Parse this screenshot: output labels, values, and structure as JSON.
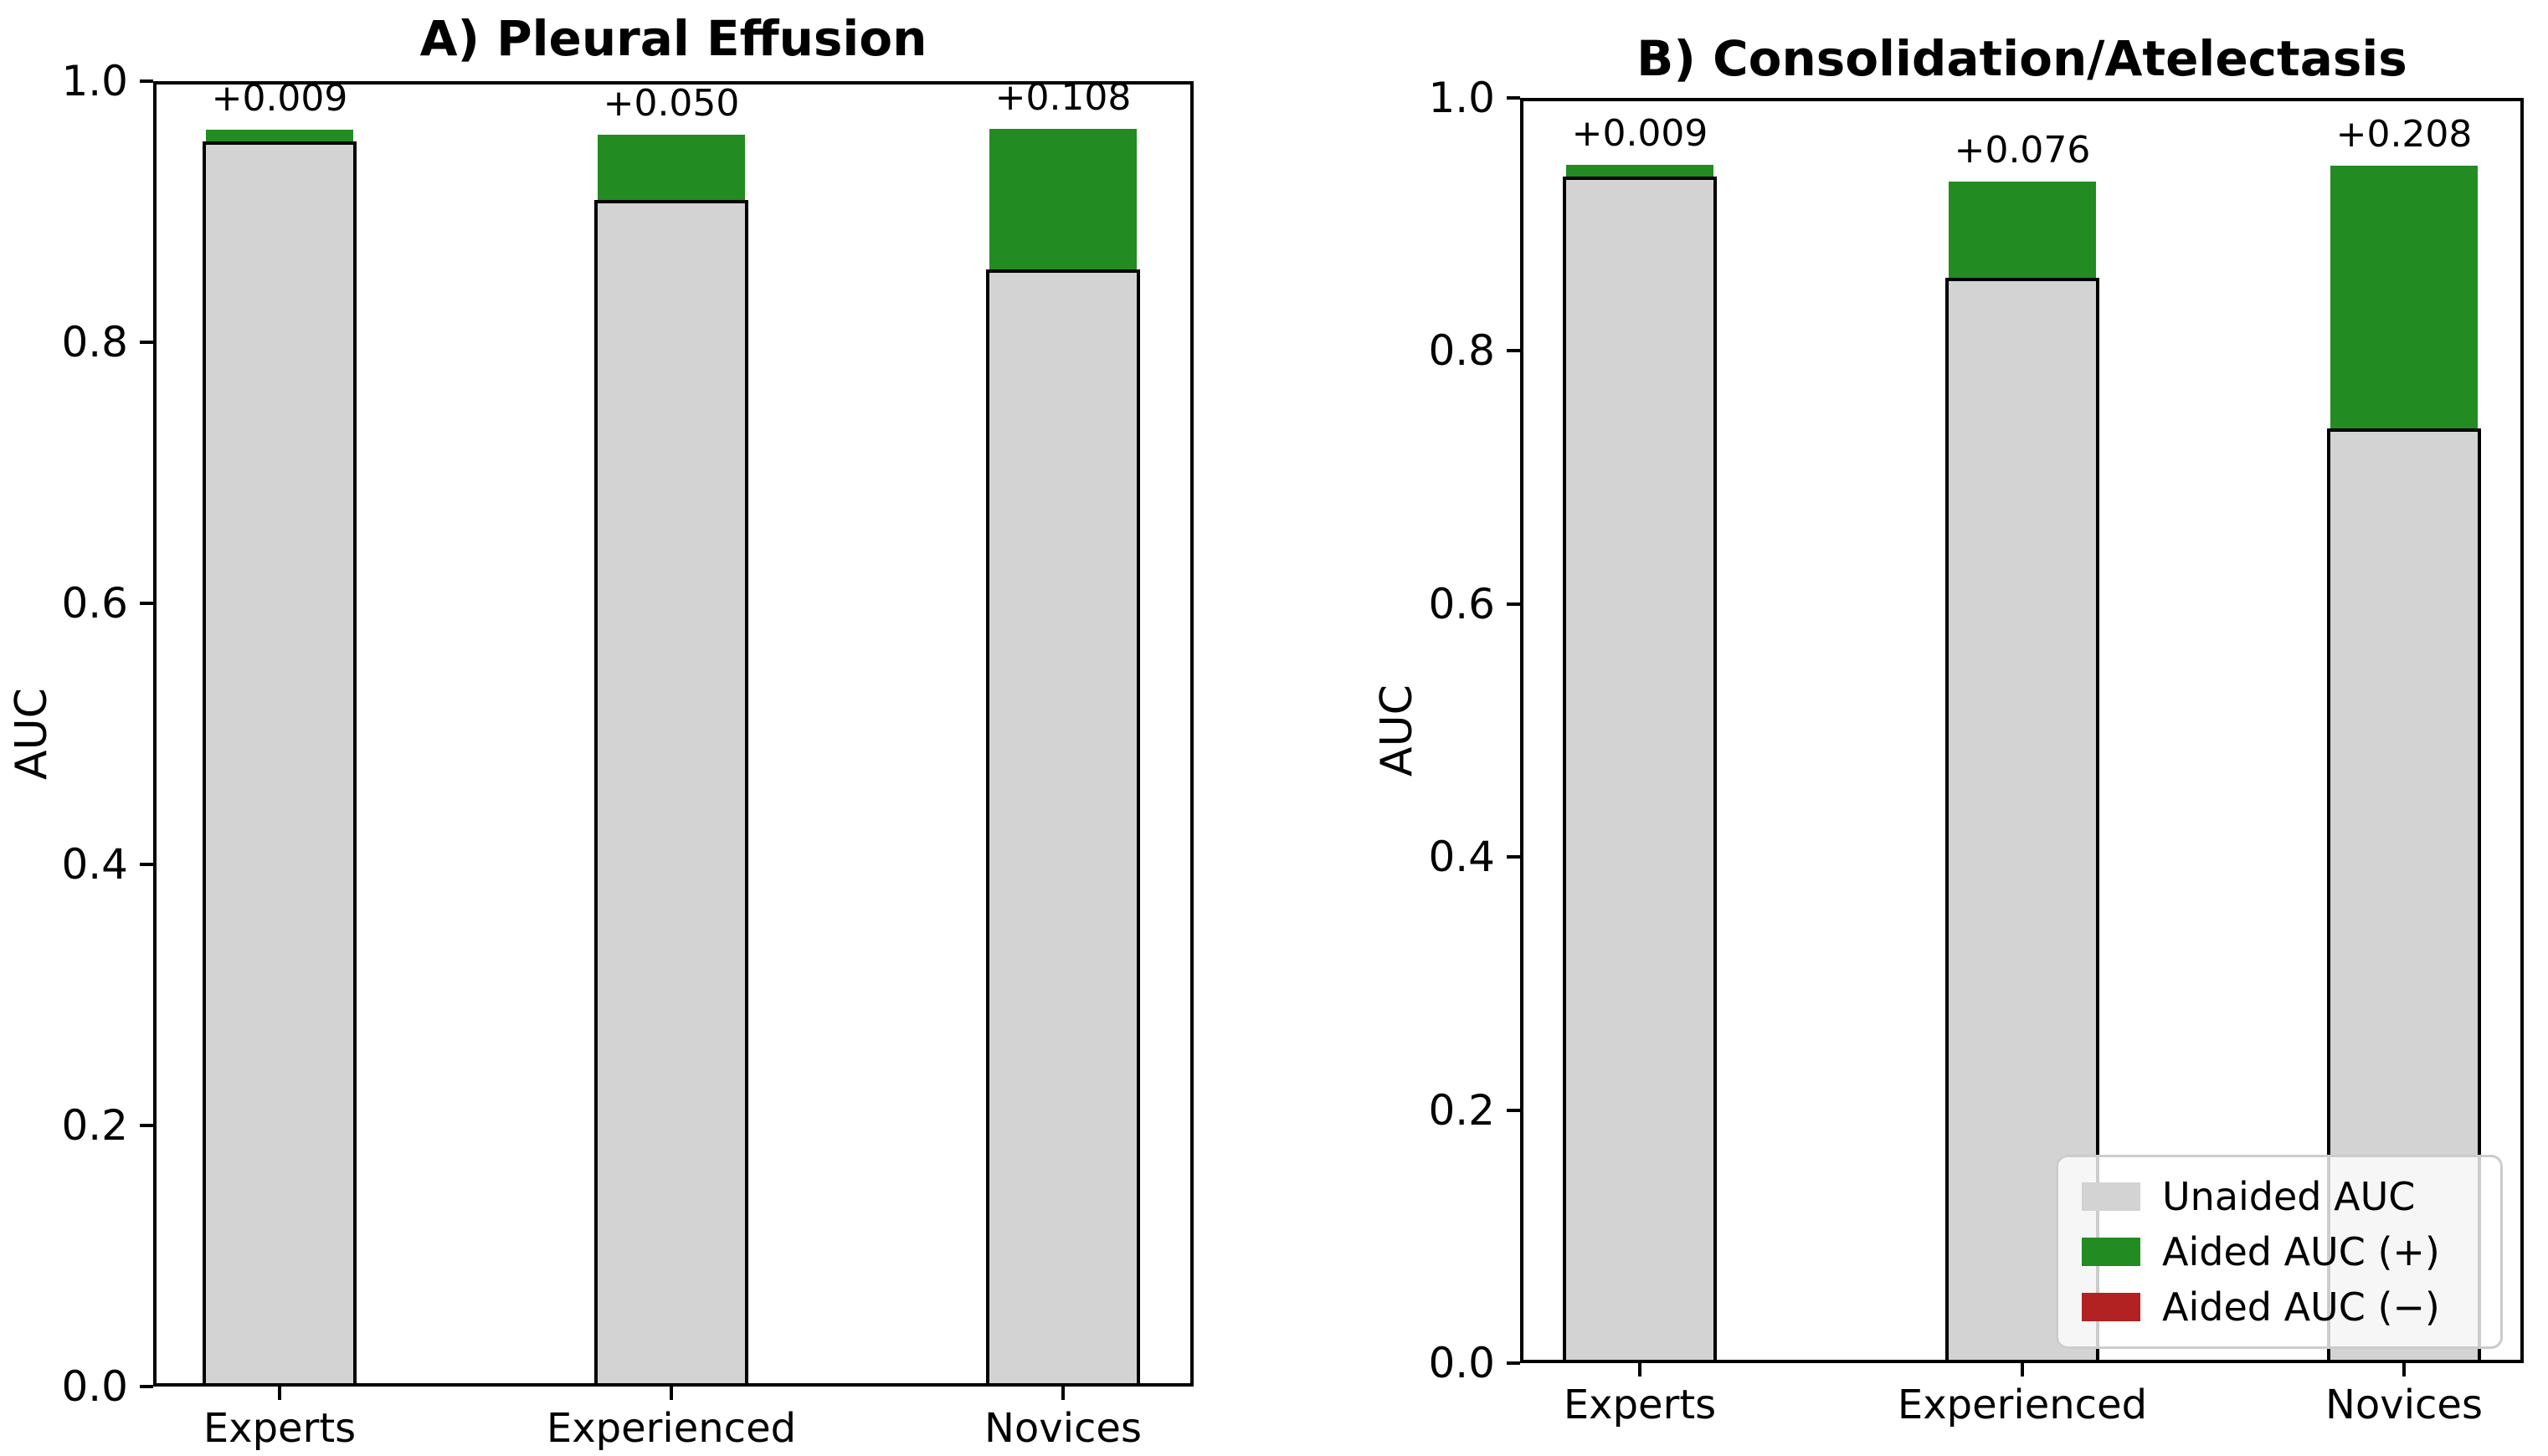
{
  "colors": {
    "background": "#ffffff",
    "unaided": "#d3d3d3",
    "aided_positive": "#228b22",
    "aided_negative": "#b22222",
    "bar_edge": "#000000",
    "axis": "#000000",
    "legend_border": "#cccccc"
  },
  "legend": {
    "entries": [
      {
        "label": "Unaided AUC",
        "color_key": "unaided"
      },
      {
        "label": "Aided AUC (+)",
        "color_key": "aided_positive"
      },
      {
        "label": "Aided AUC (−)",
        "color_key": "aided_negative"
      }
    ]
  },
  "chart_data": [
    {
      "panel": "A",
      "type": "bar",
      "title": "A) Pleural Effusion",
      "ylabel": "AUC",
      "xlabel": "",
      "categories": [
        "Experts",
        "Experienced",
        "Novices"
      ],
      "series": [
        {
          "name": "Unaided AUC",
          "values": [
            0.954,
            0.909,
            0.856
          ]
        },
        {
          "name": "Aided AUC (+)",
          "values": [
            0.963,
            0.959,
            0.964
          ]
        }
      ],
      "bar_labels": [
        "+0.009",
        "+0.050",
        "+0.108"
      ],
      "ylim": [
        0.0,
        1.0
      ],
      "yticks": [
        "1.0",
        "0.8",
        "0.6",
        "0.4",
        "0.2",
        "0.0"
      ],
      "grid": false,
      "legend": false
    },
    {
      "panel": "B",
      "type": "bar",
      "title": "B) Consolidation/Atelectasis",
      "ylabel": "AUC",
      "xlabel": "",
      "categories": [
        "Experts",
        "Experienced",
        "Novices"
      ],
      "series": [
        {
          "name": "Unaided AUC",
          "values": [
            0.938,
            0.858,
            0.739
          ]
        },
        {
          "name": "Aided AUC (+)",
          "values": [
            0.947,
            0.934,
            0.947
          ]
        }
      ],
      "bar_labels": [
        "+0.009",
        "+0.076",
        "+0.208"
      ],
      "ylim": [
        0.0,
        1.0
      ],
      "yticks": [
        "1.0",
        "0.8",
        "0.6",
        "0.4",
        "0.2",
        "0.0"
      ],
      "grid": false,
      "legend": true,
      "legend_position": "lower right"
    }
  ]
}
